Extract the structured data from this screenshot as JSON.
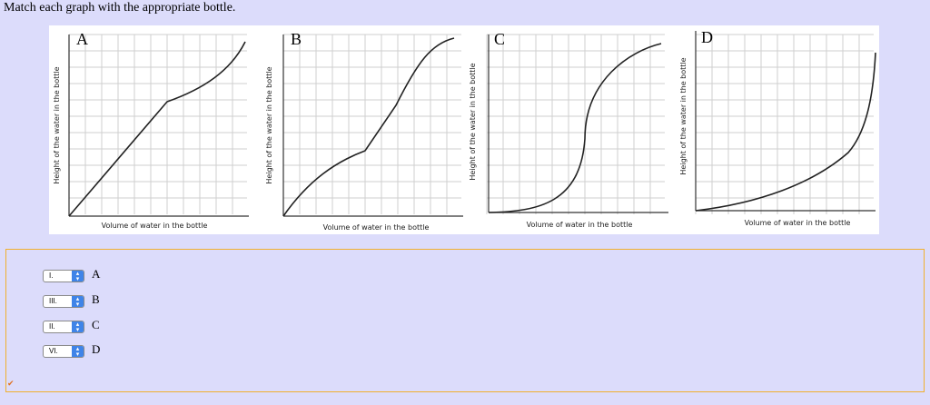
{
  "question": "Match each graph with the appropriate bottle.",
  "graphs": [
    {
      "letter": "A",
      "xlabel": "Volume of water in the bottle",
      "ylabel": "Height of the water in the bottle"
    },
    {
      "letter": "B",
      "xlabel": "Volume of water in the bottle",
      "ylabel": "Height of the water in the bottle"
    },
    {
      "letter": "C",
      "xlabel": "Volume of water in the bottle",
      "ylabel": "Height of the water in the bottle"
    },
    {
      "letter": "D",
      "xlabel": "Volume of water in the bottle",
      "ylabel": "Height of the water in the bottle"
    }
  ],
  "matches": [
    {
      "selected": "I.",
      "option": "A"
    },
    {
      "selected": "III.",
      "option": "B"
    },
    {
      "selected": "II.",
      "option": "C"
    },
    {
      "selected": "VI.",
      "option": "D"
    }
  ],
  "colors": {
    "background": "#dcdcfb",
    "panel_border": "#f0b030",
    "stepper": "#3f84e8"
  },
  "icons": {
    "stepper": "up-down-chevron-icon",
    "status": "check-icon"
  }
}
